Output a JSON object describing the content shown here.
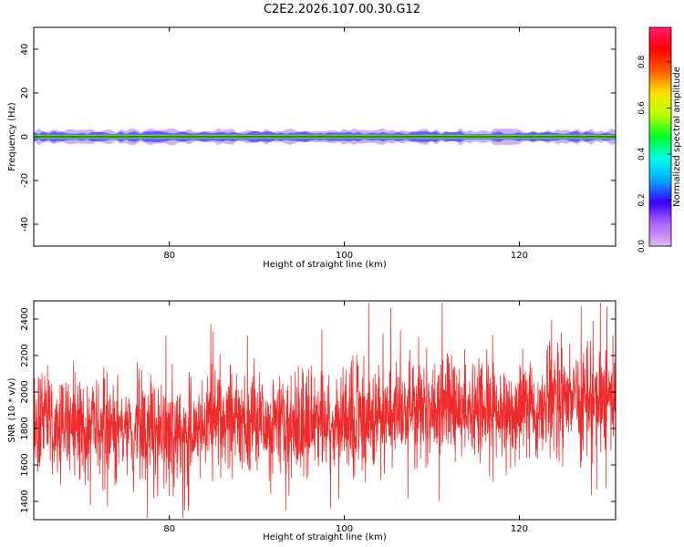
{
  "title": "C2E2.2026.107.00.30.G12",
  "colors": {
    "background": "#ffffff",
    "axis": "#000000",
    "snr_line": "#ee2a2a",
    "colorbar": [
      "#e1b7f4",
      "#b066ff",
      "#3a00ff",
      "#00a8ff",
      "#00ffea",
      "#00ff22",
      "#b8ff00",
      "#ffe100",
      "#ff5f00",
      "#ff0000",
      "#ff1b70"
    ]
  },
  "chart_data": [
    {
      "type": "heatmap",
      "xlabel": "Height of straight line (km)",
      "ylabel": "Frequency (Hz)",
      "xlim": [
        64.5,
        131
      ],
      "ylim": [
        -50,
        50
      ],
      "xticks": [
        80,
        100,
        120
      ],
      "yticks": [
        40,
        20,
        0,
        -20,
        -40
      ],
      "colorbar": {
        "label": "Normalized spectral amplitude",
        "range": [
          0,
          0.95
        ],
        "ticks": [
          0.0,
          0.2,
          0.4,
          0.6,
          0.8
        ]
      },
      "bands": [
        {
          "half_width_hz": 2.8,
          "level": 0.05
        },
        {
          "half_width_hz": 1.8,
          "level": 0.15
        },
        {
          "half_width_hz": 1.2,
          "level": 0.3
        },
        {
          "half_width_hz": 0.8,
          "level": 0.45
        },
        {
          "half_width_hz": 0.5,
          "level": 0.6
        },
        {
          "half_width_hz": 0.3,
          "level": 0.75
        },
        {
          "half_width_hz": 0.12,
          "level": 0.9
        }
      ]
    },
    {
      "type": "line",
      "xlabel": "Height of straight line (km)",
      "ylabel": "SNR (10 * v/v)",
      "xlim": [
        64.5,
        131
      ],
      "ylim": [
        1300,
        2500
      ],
      "xticks": [
        80,
        100,
        120
      ],
      "yticks": [
        1400,
        1600,
        1800,
        2000,
        2200,
        2400
      ],
      "series": [
        {
          "x_start": 64.5,
          "x_end": 131,
          "trend_points": [
            {
              "x": 64.5,
              "y": 1850
            },
            {
              "x": 75,
              "y": 1790
            },
            {
              "x": 80,
              "y": 1760
            },
            {
              "x": 88,
              "y": 1860
            },
            {
              "x": 95,
              "y": 1800
            },
            {
              "x": 100,
              "y": 1840
            },
            {
              "x": 108,
              "y": 1900
            },
            {
              "x": 115,
              "y": 1920
            },
            {
              "x": 120,
              "y": 1880
            },
            {
              "x": 125,
              "y": 1950
            },
            {
              "x": 131,
              "y": 1980
            }
          ],
          "spread": 140,
          "min": 1310,
          "max": 2490
        }
      ]
    }
  ]
}
